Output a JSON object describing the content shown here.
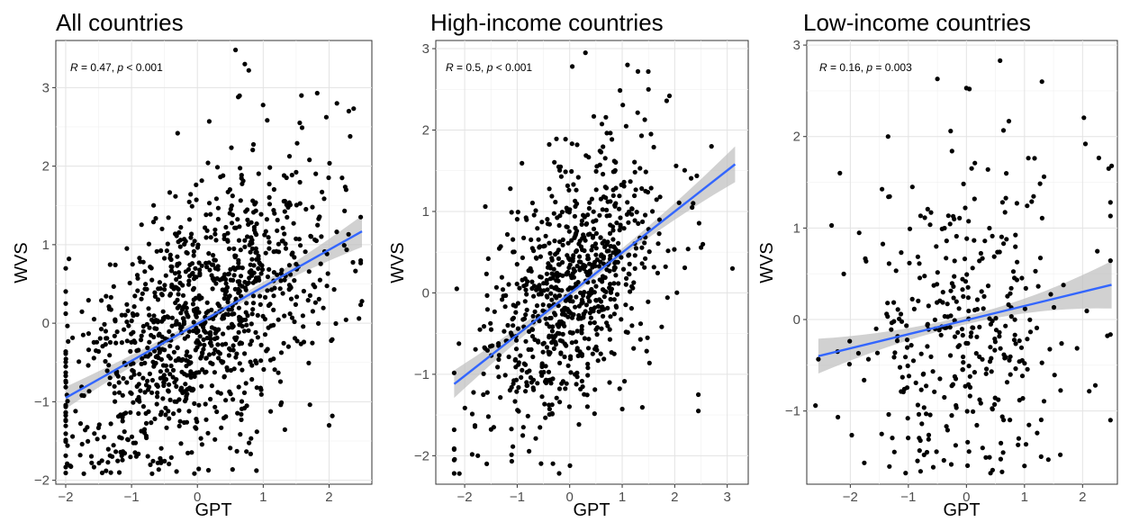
{
  "chart_data": [
    {
      "type": "scatter",
      "title": "All countries",
      "xlabel": "GPT",
      "ylabel": "WVS",
      "xlim": [
        -2.15,
        2.65
      ],
      "ylim": [
        -2.05,
        3.6
      ],
      "xticks": [
        -2,
        -1,
        0,
        1,
        2
      ],
      "yticks": [
        -2,
        -1,
        0,
        1,
        2,
        3
      ],
      "annotation": {
        "r_label": "R",
        "r_text": " = 0.47, ",
        "p_label": "p",
        "p_text": " < 0.001"
      },
      "fit": {
        "x": [
          -2.0,
          2.5
        ],
        "y": [
          -0.95,
          1.17
        ],
        "ci_start": 0.14,
        "ci_end": 0.2
      },
      "color_fit": "#3366FF",
      "color_points": "#000000",
      "color_band": "#bdbdbd",
      "seed": 11,
      "n_points": 1100,
      "sd_x": 1.0,
      "resid_sd": 0.78,
      "fixed_points": [
        {
          "x": 0.58,
          "y": 3.48
        },
        {
          "x": 0.72,
          "y": 3.3
        },
        {
          "x": 0.78,
          "y": 3.22
        },
        {
          "x": 0.62,
          "y": 2.88
        },
        {
          "x": 1.58,
          "y": 2.9
        },
        {
          "x": 1.82,
          "y": 2.93
        },
        {
          "x": 2.12,
          "y": 2.8
        },
        {
          "x": 2.3,
          "y": 2.7
        },
        {
          "x": 2.32,
          "y": 2.38
        },
        {
          "x": 2.5,
          "y": 0.28
        },
        {
          "x": 2.0,
          "y": -1.3
        },
        {
          "x": 2.05,
          "y": -1.18
        },
        {
          "x": -1.95,
          "y": 0.82
        },
        {
          "x": -2.0,
          "y": 0.25
        },
        {
          "x": -1.78,
          "y": -1.68
        },
        {
          "x": -1.45,
          "y": -1.75
        },
        {
          "x": 0.18,
          "y": 2.57
        },
        {
          "x": -0.3,
          "y": 2.42
        },
        {
          "x": 0.6,
          "y": -1.63
        }
      ]
    },
    {
      "type": "scatter",
      "title": "High-income countries",
      "xlabel": "GPT",
      "ylabel": "WVS",
      "xlim": [
        -2.55,
        3.4
      ],
      "ylim": [
        -2.35,
        3.1
      ],
      "xticks": [
        -2,
        -1,
        0,
        1,
        2,
        3
      ],
      "yticks": [
        -2,
        -1,
        0,
        1,
        2,
        3
      ],
      "annotation": {
        "r_label": "R",
        "r_text": " = 0.5, ",
        "p_label": "p",
        "p_text": " < 0.001"
      },
      "fit": {
        "x": [
          -2.2,
          3.15
        ],
        "y": [
          -1.12,
          1.58
        ],
        "ci_start": 0.17,
        "ci_end": 0.22
      },
      "color_fit": "#3366FF",
      "color_points": "#000000",
      "color_band": "#bdbdbd",
      "seed": 23,
      "n_points": 820,
      "sd_x": 0.85,
      "resid_sd": 0.72,
      "fixed_points": [
        {
          "x": 0.3,
          "y": 2.95
        },
        {
          "x": 0.05,
          "y": 2.78
        },
        {
          "x": 1.1,
          "y": 2.8
        },
        {
          "x": 1.3,
          "y": 2.72
        },
        {
          "x": 1.5,
          "y": 2.5
        },
        {
          "x": 1.9,
          "y": 2.42
        },
        {
          "x": 3.1,
          "y": 0.3
        },
        {
          "x": 2.45,
          "y": -1.25
        },
        {
          "x": 2.45,
          "y": -1.45
        },
        {
          "x": -2.1,
          "y": -2.22
        },
        {
          "x": -1.75,
          "y": -2.0
        },
        {
          "x": -1.58,
          "y": -2.1
        },
        {
          "x": -2.15,
          "y": 0.05
        },
        {
          "x": 2.7,
          "y": 1.8
        },
        {
          "x": 2.35,
          "y": 1.1
        }
      ]
    },
    {
      "type": "scatter",
      "title": "Low-income countries",
      "xlabel": "GPT",
      "ylabel": "WVS",
      "xlim": [
        -2.75,
        2.6
      ],
      "ylim": [
        -1.8,
        3.05
      ],
      "xticks": [
        -2,
        -1,
        0,
        1,
        2
      ],
      "yticks": [
        -1,
        0,
        1,
        2,
        3
      ],
      "annotation": {
        "r_label": "R",
        "r_text": " = 0.16, ",
        "p_label": "p",
        "p_text": " = 0.003"
      },
      "fit": {
        "x": [
          -2.55,
          2.5
        ],
        "y": [
          -0.4,
          0.38
        ],
        "ci_start": 0.19,
        "ci_end": 0.26
      },
      "color_fit": "#3366FF",
      "color_points": "#000000",
      "color_band": "#bdbdbd",
      "seed": 37,
      "n_points": 360,
      "sd_x": 0.95,
      "resid_sd": 0.92,
      "fixed_points": [
        {
          "x": -2.6,
          "y": -0.94
        },
        {
          "x": -2.18,
          "y": 1.6
        },
        {
          "x": -2.22,
          "y": -0.35
        },
        {
          "x": 0.58,
          "y": 2.83
        },
        {
          "x": 0.0,
          "y": 2.53
        },
        {
          "x": 0.05,
          "y": 2.52
        },
        {
          "x": -0.5,
          "y": 2.63
        },
        {
          "x": 1.3,
          "y": 2.6
        },
        {
          "x": 2.5,
          "y": 1.68
        },
        {
          "x": 2.45,
          "y": 1.65
        },
        {
          "x": 2.05,
          "y": 1.92
        },
        {
          "x": 1.0,
          "y": -1.6
        },
        {
          "x": 0.9,
          "y": -1.3
        },
        {
          "x": -1.35,
          "y": 2.0
        },
        {
          "x": 2.22,
          "y": -0.72
        }
      ]
    }
  ]
}
